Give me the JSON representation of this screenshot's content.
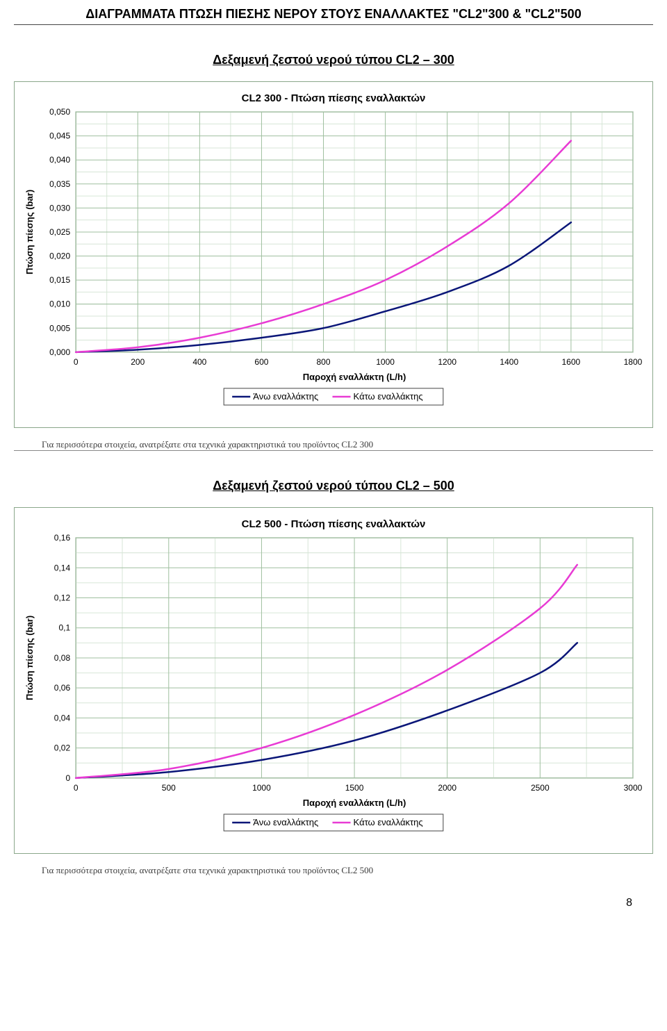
{
  "page_title": "ΔΙΑΓΡΑΜΜΑΤΑ ΠΤΩΣΗ ΠΙΕΣΗΣ ΝΕΡΟΥ ΣΤΟΥΣ ΕΝΑΛΛΑΚΤΕΣ  \"CL2\"300 & \"CL2\"500",
  "page_number": "8",
  "chart1": {
    "section_title": "Δεξαμενή ζεστού νερού τύπου CL2 – 300",
    "type": "line",
    "title": "CL2  300  -  Πτώση πίεσης εναλλακτών",
    "title_fontsize": 15,
    "title_weight": "bold",
    "xlabel": "Παροχή εναλλάκτη (L/h)",
    "ylabel": "Πτώση πίεσης (bar)",
    "label_fontsize": 13,
    "label_weight": "bold",
    "xlim": [
      0,
      1800
    ],
    "ylim": [
      0,
      0.05
    ],
    "xticks": [
      0,
      200,
      400,
      600,
      800,
      1000,
      1200,
      1400,
      1600,
      1800
    ],
    "yticks": [
      0.0,
      0.005,
      0.01,
      0.015,
      0.02,
      0.025,
      0.03,
      0.035,
      0.04,
      0.045,
      0.05
    ],
    "ytick_labels": [
      "0,000",
      "0,005",
      "0,010",
      "0,015",
      "0,020",
      "0,025",
      "0,030",
      "0,035",
      "0,040",
      "0,045",
      "0,050"
    ],
    "tick_fontsize": 12,
    "background_color": "#ffffff",
    "plot_background": "#ffffff",
    "grid_color_major": "#9fbf9f",
    "grid_color_minor": "#d7e6d7",
    "axis_color": "#6b8a6b",
    "line_width": 2.5,
    "series": [
      {
        "name": "Άνω εναλλάκτης",
        "color": "#0a1678",
        "data": [
          [
            0,
            0.0
          ],
          [
            200,
            0.0005
          ],
          [
            400,
            0.0015
          ],
          [
            600,
            0.003
          ],
          [
            800,
            0.005
          ],
          [
            1000,
            0.0085
          ],
          [
            1200,
            0.0125
          ],
          [
            1400,
            0.018
          ],
          [
            1600,
            0.027
          ]
        ]
      },
      {
        "name": "Κάτω εναλλάκτης",
        "color": "#e83bd4",
        "data": [
          [
            0,
            0.0
          ],
          [
            200,
            0.001
          ],
          [
            400,
            0.003
          ],
          [
            600,
            0.006
          ],
          [
            800,
            0.01
          ],
          [
            1000,
            0.015
          ],
          [
            1200,
            0.022
          ],
          [
            1400,
            0.031
          ],
          [
            1600,
            0.044
          ]
        ]
      }
    ],
    "legend_labels": [
      "Άνω εναλλάκτης",
      "Κάτω εναλλάκτης"
    ],
    "legend_border": "#444444",
    "footnote": "Για περισσότερα στοιχεία, ανατρέξατε στα τεχνικά χαρακτηριστικά του προϊόντος   CL2  300"
  },
  "chart2": {
    "section_title": "Δεξαμενή ζεστού νερού τύπου CL2 – 500",
    "type": "line",
    "title": "CL2  500  -  Πτώση πίεσης εναλλακτών",
    "title_fontsize": 15,
    "title_weight": "bold",
    "xlabel": "Παροχή εναλλάκτη (L/h)",
    "ylabel": "Πτώση πίεσης (bar)",
    "label_fontsize": 13,
    "label_weight": "bold",
    "xlim": [
      0,
      3000
    ],
    "ylim": [
      0,
      0.16
    ],
    "xticks": [
      0,
      500,
      1000,
      1500,
      2000,
      2500,
      3000
    ],
    "yticks": [
      0,
      0.02,
      0.04,
      0.06,
      0.08,
      0.1,
      0.12,
      0.14,
      0.16
    ],
    "ytick_labels": [
      "0",
      "0,02",
      "0,04",
      "0,06",
      "0,08",
      "0,1",
      "0,12",
      "0,14",
      "0,16"
    ],
    "tick_fontsize": 12,
    "background_color": "#ffffff",
    "plot_background": "#ffffff",
    "grid_color_major": "#9fbf9f",
    "grid_color_minor": "#d7e6d7",
    "axis_color": "#6b8a6b",
    "line_width": 2.5,
    "series": [
      {
        "name": "Άνω εναλλάκτης",
        "color": "#0a1678",
        "data": [
          [
            0,
            0.0
          ],
          [
            500,
            0.004
          ],
          [
            1000,
            0.012
          ],
          [
            1500,
            0.025
          ],
          [
            2000,
            0.045
          ],
          [
            2500,
            0.07
          ],
          [
            2700,
            0.09
          ]
        ]
      },
      {
        "name": "Κάτω εναλλάκτης",
        "color": "#e83bd4",
        "data": [
          [
            0,
            0.0
          ],
          [
            500,
            0.006
          ],
          [
            1000,
            0.02
          ],
          [
            1500,
            0.042
          ],
          [
            2000,
            0.072
          ],
          [
            2500,
            0.113
          ],
          [
            2700,
            0.142
          ]
        ]
      }
    ],
    "legend_labels": [
      "Άνω εναλλάκτης",
      "Κάτω εναλλάκτης"
    ],
    "legend_border": "#444444",
    "footnote": "Για περισσότερα στοιχεία, ανατρέξατε στα τεχνικά χαρακτηριστικά του προϊόντος   CL2  500"
  }
}
